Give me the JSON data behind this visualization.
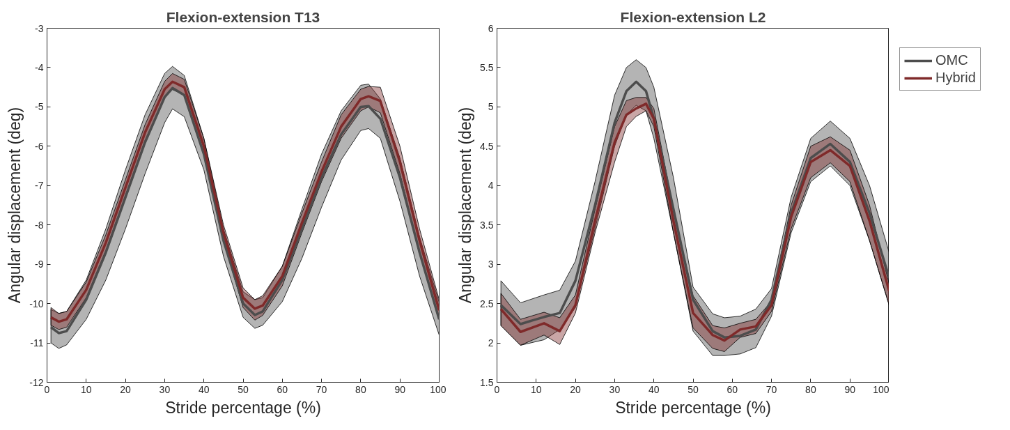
{
  "chart_data": [
    {
      "type": "line",
      "title": "Flexion-extension T13",
      "xlabel": "Stride percentage (%)",
      "ylabel": "Angular displacement (deg)",
      "x": [
        1,
        3,
        5,
        10,
        15,
        20,
        25,
        30,
        32,
        35,
        40,
        45,
        50,
        53,
        55,
        60,
        65,
        70,
        75,
        80,
        82,
        85,
        90,
        95,
        100
      ],
      "xlim": [
        0,
        100
      ],
      "xticks": [
        0,
        10,
        20,
        30,
        40,
        50,
        60,
        70,
        80,
        90,
        100
      ],
      "ylim": [
        -12,
        -3
      ],
      "yticks": [
        -12,
        -11,
        -10,
        -9,
        -8,
        -7,
        -6,
        -5,
        -4,
        -3
      ],
      "grid": false,
      "legend": false,
      "marker": "none",
      "line_style": "solid",
      "series": [
        {
          "color": "#4d4d4d",
          "values": [
            -10.6,
            -10.75,
            -10.7,
            -9.9,
            -8.7,
            -7.3,
            -5.9,
            -4.75,
            -4.52,
            -4.7,
            -6.2,
            -8.4,
            -10.0,
            -10.29,
            -10.2,
            -9.4,
            -8.1,
            -6.8,
            -5.7,
            -5.0,
            -4.98,
            -5.3,
            -6.8,
            -8.7,
            -10.4
          ],
          "lower": [
            -11.0,
            -11.14,
            -11.05,
            -10.4,
            -9.4,
            -8.1,
            -6.7,
            -5.4,
            -5.05,
            -5.25,
            -6.6,
            -8.8,
            -10.35,
            -10.63,
            -10.55,
            -9.95,
            -8.85,
            -7.55,
            -6.35,
            -5.6,
            -5.55,
            -5.8,
            -7.4,
            -9.3,
            -10.8
          ],
          "upper": [
            -10.15,
            -10.25,
            -10.2,
            -9.4,
            -8.1,
            -6.6,
            -5.2,
            -4.15,
            -3.97,
            -4.2,
            -5.8,
            -8.1,
            -9.7,
            -9.9,
            -9.85,
            -9.05,
            -7.6,
            -6.2,
            -5.1,
            -4.45,
            -4.42,
            -4.8,
            -6.3,
            -8.3,
            -9.97
          ]
        },
        {
          "color": "#7f2a2a",
          "values": [
            -10.35,
            -10.46,
            -10.4,
            -9.65,
            -8.45,
            -7.05,
            -5.65,
            -4.55,
            -4.36,
            -4.5,
            -6.0,
            -8.2,
            -9.85,
            -10.13,
            -10.05,
            -9.3,
            -7.95,
            -6.65,
            -5.5,
            -4.8,
            -4.73,
            -4.85,
            -6.4,
            -8.4,
            -10.17
          ],
          "lower": [
            -10.55,
            -10.66,
            -10.6,
            -9.85,
            -8.65,
            -7.25,
            -5.85,
            -4.75,
            -4.56,
            -4.7,
            -6.2,
            -8.4,
            -10.1,
            -10.42,
            -10.3,
            -9.55,
            -8.2,
            -6.9,
            -5.8,
            -5.1,
            -5.0,
            -5.15,
            -6.7,
            -8.7,
            -10.4
          ],
          "upper": [
            -10.1,
            -10.25,
            -10.2,
            -9.45,
            -8.25,
            -6.85,
            -5.45,
            -4.35,
            -4.15,
            -4.3,
            -5.8,
            -8.0,
            -9.6,
            -9.9,
            -9.8,
            -9.05,
            -7.7,
            -6.4,
            -5.2,
            -4.55,
            -4.48,
            -4.5,
            -6.0,
            -8.1,
            -9.9
          ]
        }
      ]
    },
    {
      "type": "line",
      "title": "Flexion-extension L2",
      "xlabel": "Stride percentage (%)",
      "ylabel": "Angular displacement (deg)",
      "x": [
        1,
        6,
        12,
        16,
        20,
        25,
        30,
        33,
        35.5,
        38,
        40,
        45,
        50,
        55,
        58,
        62,
        66,
        70,
        75,
        80,
        85,
        90,
        95,
        100
      ],
      "xlim": [
        0,
        100
      ],
      "xticks": [
        0,
        10,
        20,
        30,
        40,
        50,
        60,
        70,
        80,
        90,
        100
      ],
      "ylim": [
        1.5,
        6
      ],
      "yticks": [
        1.5,
        2,
        2.5,
        3,
        3.5,
        4,
        4.5,
        5,
        5.5,
        6
      ],
      "grid": false,
      "legend": "top right",
      "marker": "none",
      "line_style": "solid",
      "series": [
        {
          "name": "OMC",
          "color": "#4d4d4d",
          "values": [
            2.48,
            2.24,
            2.33,
            2.38,
            2.79,
            3.75,
            4.8,
            5.2,
            5.32,
            5.2,
            4.85,
            3.7,
            2.55,
            2.15,
            2.07,
            2.09,
            2.17,
            2.55,
            3.65,
            4.35,
            4.53,
            4.3,
            3.65,
            2.83
          ],
          "lower": [
            2.22,
            1.97,
            2.04,
            2.17,
            2.45,
            3.45,
            4.5,
            4.9,
            5.02,
            4.95,
            4.6,
            3.4,
            2.15,
            1.84,
            1.84,
            1.86,
            1.94,
            2.34,
            3.4,
            4.05,
            4.25,
            4.0,
            3.3,
            2.48
          ],
          "upper": [
            2.79,
            2.51,
            2.61,
            2.67,
            3.04,
            4.05,
            5.15,
            5.5,
            5.6,
            5.5,
            5.25,
            4.1,
            2.71,
            2.37,
            2.32,
            2.34,
            2.43,
            2.69,
            3.85,
            4.6,
            4.82,
            4.6,
            4.0,
            3.15
          ]
        },
        {
          "name": "Hybrid",
          "color": "#7f2a2a",
          "values": [
            2.43,
            2.14,
            2.25,
            2.15,
            2.48,
            3.55,
            4.55,
            4.9,
            4.98,
            5.04,
            4.85,
            3.55,
            2.38,
            2.1,
            2.03,
            2.17,
            2.21,
            2.48,
            3.6,
            4.3,
            4.45,
            4.25,
            3.55,
            2.66
          ],
          "lower": [
            2.22,
            1.97,
            2.1,
            1.98,
            2.38,
            3.4,
            4.3,
            4.75,
            4.88,
            4.95,
            4.75,
            3.4,
            2.19,
            1.93,
            1.89,
            2.07,
            2.12,
            2.4,
            3.45,
            4.1,
            4.29,
            4.05,
            3.3,
            2.48
          ],
          "upper": [
            2.63,
            2.3,
            2.39,
            2.32,
            2.61,
            3.7,
            4.75,
            5.08,
            5.12,
            5.12,
            4.98,
            3.7,
            2.6,
            2.22,
            2.19,
            2.25,
            2.3,
            2.53,
            3.75,
            4.5,
            4.62,
            4.45,
            3.75,
            2.75
          ]
        }
      ]
    }
  ]
}
